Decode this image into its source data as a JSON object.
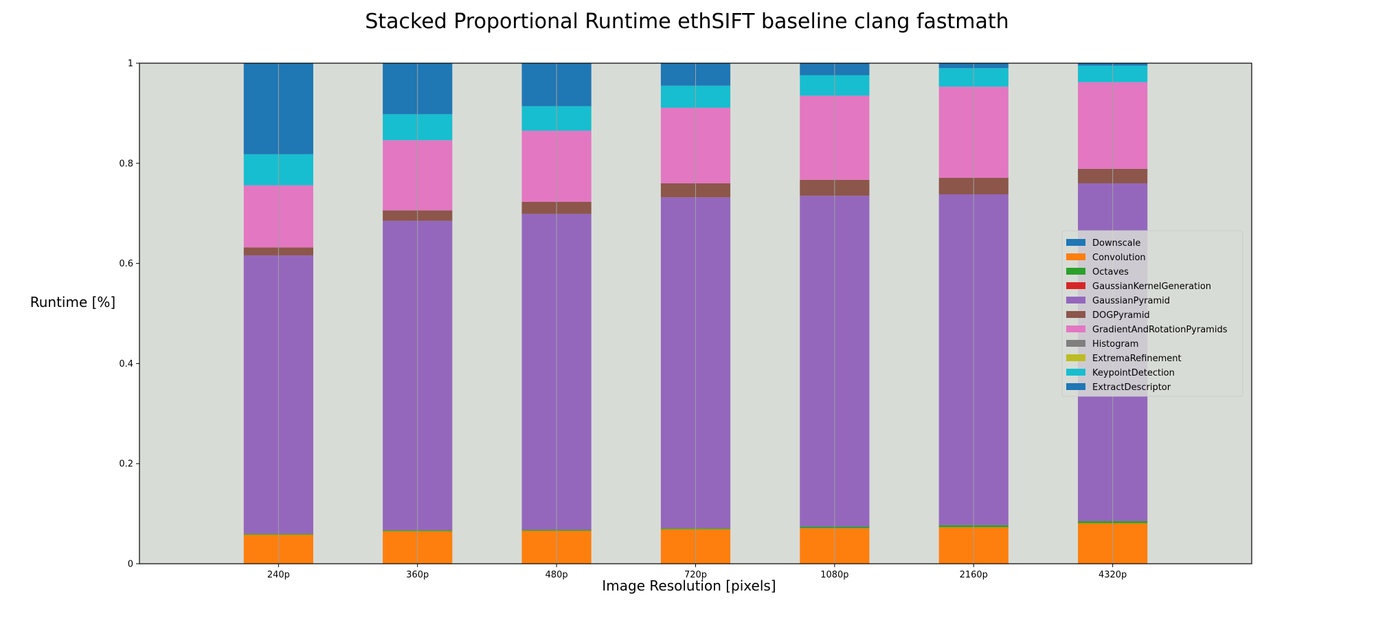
{
  "chart_data": {
    "type": "bar",
    "stacked": true,
    "title": "Stacked Proportional Runtime ethSIFT baseline clang fastmath",
    "xlabel": "Image Resolution [pixels]",
    "ylabel": "Runtime [%]",
    "ylim": [
      0,
      1
    ],
    "yticks": [
      "0",
      "0.2",
      "0.4",
      "0.6",
      "0.8",
      "1"
    ],
    "ytick_values": [
      0,
      0.2,
      0.4,
      0.6,
      0.8,
      1
    ],
    "categories": [
      "240p",
      "360p",
      "480p",
      "720p",
      "1080p",
      "2160p",
      "4320p"
    ],
    "grid": "vertical",
    "plot_background": "#d8dcd6",
    "legend_position": "right",
    "series": [
      {
        "name": "Downscale",
        "color": "#1f77b4",
        "values": [
          0,
          0,
          0,
          0,
          0,
          0,
          0
        ]
      },
      {
        "name": "Convolution",
        "color": "#ff7f0e",
        "values": [
          0.058,
          0.065,
          0.066,
          0.069,
          0.071,
          0.073,
          0.081
        ]
      },
      {
        "name": "Octaves",
        "color": "#2ca02c",
        "values": [
          0.002,
          0.002,
          0.002,
          0.002,
          0.003,
          0.004,
          0.004
        ]
      },
      {
        "name": "GaussianKernelGeneration",
        "color": "#d62728",
        "values": [
          0,
          0,
          0,
          0,
          0,
          0,
          0
        ]
      },
      {
        "name": "GaussianPyramid",
        "color": "#9467bd",
        "values": [
          0.556,
          0.618,
          0.631,
          0.661,
          0.661,
          0.661,
          0.675
        ]
      },
      {
        "name": "DOGPyramid",
        "color": "#8c564b",
        "values": [
          0.016,
          0.021,
          0.024,
          0.028,
          0.032,
          0.033,
          0.029
        ]
      },
      {
        "name": "GradientAndRotationPyramids",
        "color": "#e377c2",
        "values": [
          0.124,
          0.14,
          0.142,
          0.151,
          0.168,
          0.182,
          0.173
        ]
      },
      {
        "name": "Histogram",
        "color": "#7f7f7f",
        "values": [
          0,
          0,
          0,
          0,
          0,
          0,
          0
        ]
      },
      {
        "name": "ExtremaRefinement",
        "color": "#bcbd22",
        "values": [
          0,
          0,
          0,
          0,
          0,
          0,
          0
        ]
      },
      {
        "name": "KeypointDetection",
        "color": "#17becf",
        "values": [
          0.062,
          0.052,
          0.049,
          0.044,
          0.041,
          0.037,
          0.033
        ]
      },
      {
        "name": "ExtractDescriptor",
        "color": "#1f77b4",
        "values": [
          0.182,
          0.102,
          0.086,
          0.045,
          0.024,
          0.01,
          0.005
        ]
      }
    ]
  }
}
